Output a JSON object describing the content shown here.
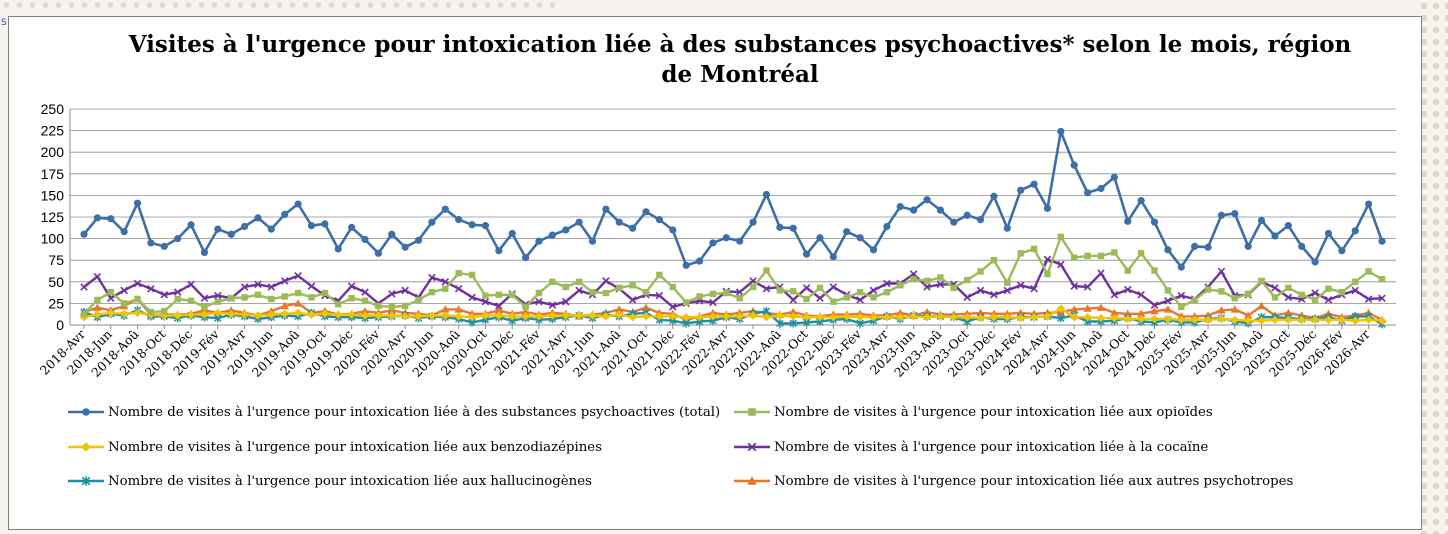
{
  "title": "Visites à l'urgence pour intoxication liée à des substances psychoactives* selon le mois, région de Montréal",
  "left_edge_text": "S",
  "chart_data": {
    "type": "line",
    "title": "Visites à l'urgence pour intoxication liée à des substances psychoactives* selon le mois, région de Montréal",
    "xlabel": "",
    "ylabel": "",
    "ylim": [
      0,
      250
    ],
    "yticks": [
      0,
      25,
      50,
      75,
      100,
      125,
      150,
      175,
      200,
      225,
      250
    ],
    "grid": true,
    "legend_position": "bottom",
    "x": [
      "2018-Avr",
      "2018-Mai",
      "2018-Jun",
      "2018-Jul",
      "2018-Aoû",
      "2018-Sep",
      "2018-Oct",
      "2018-Nov",
      "2018-Déc",
      "2019-Jan",
      "2019-Fév",
      "2019-Mar",
      "2019-Avr",
      "2019-Mai",
      "2019-Jun",
      "2019-Jul",
      "2019-Aoû",
      "2019-Sep",
      "2019-Oct",
      "2019-Nov",
      "2019-Déc",
      "2020-Jan",
      "2020-Fév",
      "2020-Mar",
      "2020-Avr",
      "2020-Mai",
      "2020-Jun",
      "2020-Jul",
      "2020-Aoû",
      "2020-Sep",
      "2020-Oct",
      "2020-Nov",
      "2020-Déc",
      "2021-Jan",
      "2021-Fév",
      "2021-Mar",
      "2021-Avr",
      "2021-Mai",
      "2021-Jun",
      "2021-Jul",
      "2021-Aoû",
      "2021-Sep",
      "2021-Oct",
      "2021-Nov",
      "2021-Déc",
      "2022-Jan",
      "2022-Fév",
      "2022-Mar",
      "2022-Avr",
      "2022-Mai",
      "2022-Jun",
      "2022-Jul",
      "2022-Aoû",
      "2022-Sep",
      "2022-Oct",
      "2022-Nov",
      "2022-Déc",
      "2023-Jan",
      "2023-Fév",
      "2023-Mar",
      "2023-Avr",
      "2023-Mai",
      "2023-Jun",
      "2023-Jul",
      "2023-Aoû",
      "2023-Sep",
      "2023-Oct",
      "2023-Nov",
      "2023-Déc",
      "2024-Jan",
      "2024-Fév",
      "2024-Mar",
      "2024-Avr",
      "2024-Mai",
      "2024-Jun",
      "2024-Jul",
      "2024-Aoû",
      "2024-Sep",
      "2024-Oct",
      "2024-Nov",
      "2024-Déc",
      "2025-Jan",
      "2025-Fév",
      "2025-Mar",
      "2025-Avr",
      "2025-Mai",
      "2025-Jun",
      "2025-Jul",
      "2025-Aoû",
      "2025-Sep",
      "2025-Oct",
      "2025-Nov",
      "2025-Déc",
      "2026-Jan",
      "2026-Fév",
      "2026-Mar",
      "2026-Avr",
      "2026-Mai"
    ],
    "tick_labels": [
      "2018-Avr",
      "2018-Jun",
      "2018-Aoû",
      "2018-Oct",
      "2018-Déc",
      "2019-Fév",
      "2019-Avr",
      "2019-Jun",
      "2019-Aoû",
      "2019-Oct",
      "2019-Déc",
      "2020-Fév",
      "2020-Avr",
      "2020-Jun",
      "2020-Aoû",
      "2020-Oct",
      "2020-Déc",
      "2021-Fév",
      "2021-Avr",
      "2021-Jun",
      "2021-Aoû",
      "2021-Oct",
      "2021-Déc",
      "2022-Fév",
      "2022-Avr",
      "2022-Jun",
      "2022-Aoû",
      "2022-Oct",
      "2022-Déc",
      "2023-Fév",
      "2023-Avr",
      "2023-Jun",
      "2023-Aoû",
      "2023-Oct",
      "2023-Déc",
      "2024-Fév",
      "2024-Avr",
      "2024-Jun",
      "2024-Aoû",
      "2024-Oct",
      "2024-Déc",
      "2025-Fév",
      "2025-Avr",
      "2025-Jun",
      "2025-Aoû",
      "2025-Oct",
      "2025-Déc",
      "2026-Fév",
      "2026-Avr"
    ],
    "series": [
      {
        "name": "Nombre de visites à l'urgence pour intoxication liée à des substances psychoactives (total)",
        "color": "#3c6ea8",
        "marker": "circle",
        "values": [
          105,
          124,
          123,
          108,
          141,
          95,
          91,
          100,
          116,
          84,
          111,
          105,
          114,
          124,
          111,
          128,
          140,
          115,
          117,
          88,
          113,
          99,
          83,
          105,
          90,
          98,
          119,
          134,
          122,
          116,
          115,
          86,
          106,
          78,
          97,
          104,
          110,
          119,
          97,
          134,
          119,
          112,
          131,
          122,
          110,
          69,
          74,
          95,
          101,
          97,
          119,
          151,
          113,
          112,
          82,
          101,
          79,
          108,
          101,
          87,
          114,
          137,
          133,
          145,
          133,
          119,
          127,
          122,
          149,
          112,
          156,
          163,
          135,
          224,
          185,
          153,
          158,
          171,
          120,
          144,
          119,
          87,
          67,
          91,
          90,
          127,
          129,
          91,
          121,
          103,
          115,
          91,
          73,
          106,
          86,
          109,
          140,
          97
        ]
      },
      {
        "name": "Nombre de visites à l'urgence pour intoxication liée aux opioïdes",
        "color": "#9bbb59",
        "marker": "square",
        "values": [
          13,
          29,
          38,
          25,
          30,
          15,
          16,
          30,
          28,
          21,
          27,
          31,
          32,
          35,
          30,
          33,
          37,
          32,
          37,
          24,
          31,
          28,
          22,
          21,
          22,
          29,
          38,
          42,
          60,
          58,
          34,
          35,
          35,
          21,
          37,
          50,
          44,
          50,
          38,
          37,
          43,
          46,
          38,
          58,
          44,
          26,
          33,
          36,
          37,
          31,
          44,
          63,
          40,
          39,
          30,
          43,
          27,
          32,
          38,
          32,
          38,
          46,
          53,
          51,
          55,
          43,
          52,
          62,
          75,
          49,
          83,
          88,
          59,
          102,
          78,
          80,
          80,
          84,
          63,
          83,
          63,
          40,
          21,
          29,
          41,
          39,
          31,
          36,
          51,
          32,
          43,
          35,
          29,
          42,
          38,
          50,
          62,
          53
        ]
      },
      {
        "name": "Nombre de visites à l'urgence pour intoxication liée aux benzodiazépines",
        "color": "#f0c400",
        "marker": "diamond",
        "values": [
          9,
          12,
          14,
          13,
          14,
          12,
          11,
          11,
          12,
          12,
          14,
          13,
          12,
          11,
          12,
          13,
          14,
          12,
          13,
          12,
          12,
          11,
          11,
          11,
          10,
          10,
          11,
          11,
          10,
          9,
          11,
          11,
          10,
          10,
          10,
          11,
          11,
          11,
          11,
          10,
          12,
          9,
          10,
          10,
          10,
          9,
          9,
          10,
          10,
          10,
          11,
          9,
          11,
          10,
          9,
          9,
          9,
          10,
          9,
          9,
          9,
          9,
          10,
          9,
          10,
          9,
          9,
          8,
          9,
          9,
          8,
          9,
          10,
          19,
          9,
          9,
          8,
          8,
          7,
          7,
          7,
          7,
          6,
          6,
          6,
          7,
          6,
          5,
          5,
          6,
          6,
          6,
          6,
          6,
          6,
          5,
          6,
          5
        ]
      },
      {
        "name": "Nombre de visites à l'urgence pour intoxication liée à la cocaïne",
        "color": "#7030a0",
        "marker": "x",
        "values": [
          44,
          56,
          31,
          40,
          48,
          42,
          35,
          38,
          47,
          31,
          34,
          31,
          44,
          47,
          44,
          51,
          57,
          45,
          34,
          28,
          45,
          38,
          25,
          36,
          40,
          32,
          55,
          50,
          42,
          32,
          27,
          22,
          36,
          24,
          27,
          23,
          27,
          40,
          35,
          51,
          42,
          29,
          35,
          34,
          21,
          25,
          28,
          26,
          39,
          38,
          51,
          42,
          44,
          29,
          43,
          31,
          44,
          35,
          29,
          40,
          48,
          48,
          59,
          44,
          47,
          47,
          32,
          40,
          35,
          40,
          46,
          42,
          76,
          70,
          45,
          44,
          60,
          35,
          41,
          35,
          23,
          28,
          34,
          30,
          44,
          62,
          34,
          35,
          50,
          43,
          32,
          30,
          37,
          29,
          35,
          40,
          30,
          31
        ]
      },
      {
        "name": "Nombre de visites à l'urgence pour intoxication liée aux hallucinogènes",
        "color": "#1f8fa8",
        "marker": "star",
        "values": [
          15,
          9,
          13,
          11,
          17,
          10,
          10,
          8,
          11,
          9,
          8,
          12,
          10,
          7,
          9,
          11,
          10,
          14,
          10,
          9,
          9,
          8,
          9,
          10,
          11,
          8,
          10,
          9,
          7,
          3,
          6,
          9,
          5,
          8,
          6,
          7,
          9,
          11,
          8,
          12,
          10,
          13,
          14,
          6,
          5,
          2,
          4,
          5,
          9,
          7,
          13,
          16,
          2,
          2,
          3,
          4,
          6,
          7,
          2,
          5,
          10,
          7,
          11,
          10,
          10,
          9,
          4,
          9,
          7,
          7,
          9,
          9,
          10,
          8,
          11,
          4,
          4,
          5,
          8,
          4,
          3,
          6,
          3,
          3,
          7,
          8,
          4,
          2,
          9,
          9,
          8,
          7,
          7,
          9,
          5,
          10,
          10,
          1
        ]
      },
      {
        "name": "Nombre de visites à l'urgence pour intoxication liée aux autres psychotropes",
        "color": "#e8772e",
        "marker": "triangle",
        "values": [
          15,
          20,
          17,
          22,
          30,
          12,
          12,
          12,
          13,
          17,
          14,
          17,
          14,
          11,
          16,
          22,
          25,
          14,
          16,
          12,
          13,
          16,
          14,
          17,
          14,
          13,
          11,
          18,
          18,
          13,
          13,
          17,
          13,
          15,
          12,
          14,
          13,
          10,
          12,
          14,
          18,
          15,
          20,
          14,
          13,
          6,
          10,
          14,
          12,
          14,
          16,
          14,
          12,
          15,
          11,
          10,
          12,
          12,
          13,
          11,
          11,
          14,
          11,
          15,
          12,
          12,
          13,
          14,
          13,
          13,
          14,
          13,
          14,
          15,
          18,
          19,
          20,
          14,
          13,
          13,
          16,
          18,
          10,
          10,
          11,
          17,
          18,
          11,
          22,
          11,
          14,
          11,
          8,
          13,
          9,
          11,
          14,
          6
        ]
      }
    ]
  }
}
